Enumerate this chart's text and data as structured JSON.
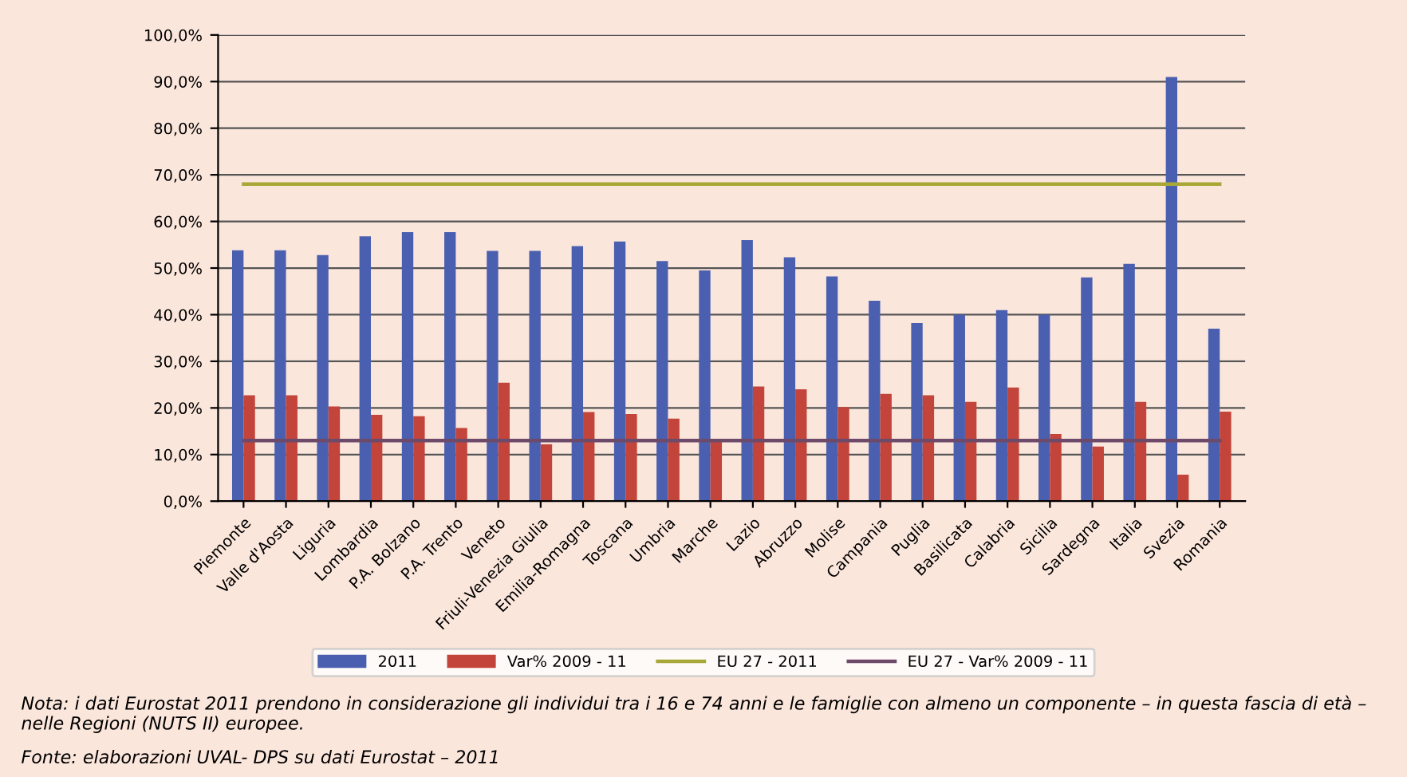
{
  "chart_data": {
    "type": "bar",
    "categories": [
      "Piemonte",
      "Valle d'Aosta",
      "Liguria",
      "Lombardia",
      "P.A. Bolzano",
      "P.A. Trento",
      "Veneto",
      "Friuli-Venezia Giulia",
      "Emilia-Romagna",
      "Toscana",
      "Umbria",
      "Marche",
      "Lazio",
      "Abruzzo",
      "Molise",
      "Campania",
      "Puglia",
      "Basilicata",
      "Calabria",
      "Sicilia",
      "Sardegna",
      "Italia",
      "Svezia",
      "Romania"
    ],
    "series": [
      {
        "name": "2011",
        "color": "#4a5fb0",
        "values": [
          53.8,
          53.8,
          52.8,
          56.8,
          57.7,
          57.7,
          53.7,
          53.7,
          54.7,
          55.7,
          51.5,
          49.5,
          56,
          52.3,
          48.2,
          43,
          38.2,
          40,
          41,
          40,
          48,
          50.9,
          91,
          37
        ]
      },
      {
        "name": "Var% 2009 - 11",
        "color": "#c2443a",
        "values": [
          22.7,
          22.7,
          20.3,
          18.5,
          18.2,
          15.7,
          25.4,
          12.2,
          19.1,
          18.7,
          17.7,
          12.8,
          24.6,
          24,
          20.2,
          23,
          22.7,
          21.3,
          24.4,
          14.4,
          11.7,
          21.3,
          5.7,
          19.2
        ]
      },
      {
        "name": "EU 27 - 2011",
        "type": "line",
        "color": "#a8a838",
        "values": [
          68,
          68,
          68,
          68,
          68,
          68,
          68,
          68,
          68,
          68,
          68,
          68,
          68,
          68,
          68,
          68,
          68,
          68,
          68,
          68,
          68,
          68,
          68,
          68
        ]
      },
      {
        "name": "EU 27 - Var% 2009 - 11",
        "type": "line",
        "color": "#6e4a6a",
        "values": [
          13,
          13,
          13,
          13,
          13,
          13,
          13,
          13,
          13,
          13,
          13,
          13,
          13,
          13,
          13,
          13,
          13,
          13,
          13,
          13,
          13,
          13,
          13,
          13
        ]
      }
    ],
    "ylim": [
      0,
      100
    ],
    "yticks": [
      {
        "value": 0,
        "label": "0,0%"
      },
      {
        "value": 10,
        "label": "10,0%"
      },
      {
        "value": 20,
        "label": "20,0%"
      },
      {
        "value": 30,
        "label": "30,0%"
      },
      {
        "value": 40,
        "label": "40,0%"
      },
      {
        "value": 50,
        "label": "50,0%"
      },
      {
        "value": 60,
        "label": "60,0%"
      },
      {
        "value": 70,
        "label": "70,0%"
      },
      {
        "value": 80,
        "label": "80,0%"
      },
      {
        "value": 90,
        "label": "90,0%"
      },
      {
        "value": 100,
        "label": "100,0%"
      }
    ],
    "grid": "y",
    "legend": "bottom",
    "marker": "none",
    "annotations": [
      "Nota: i dati Eurostat 2011 prendono in considerazione gli individui tra i 16 e 74 anni e le famiglie con almeno un componente – in questa fascia di età – nelle Regioni (NUTS II) europee.",
      "Fonte: elaborazioni UVAL- DPS su dati Eurostat – 2011"
    ]
  }
}
